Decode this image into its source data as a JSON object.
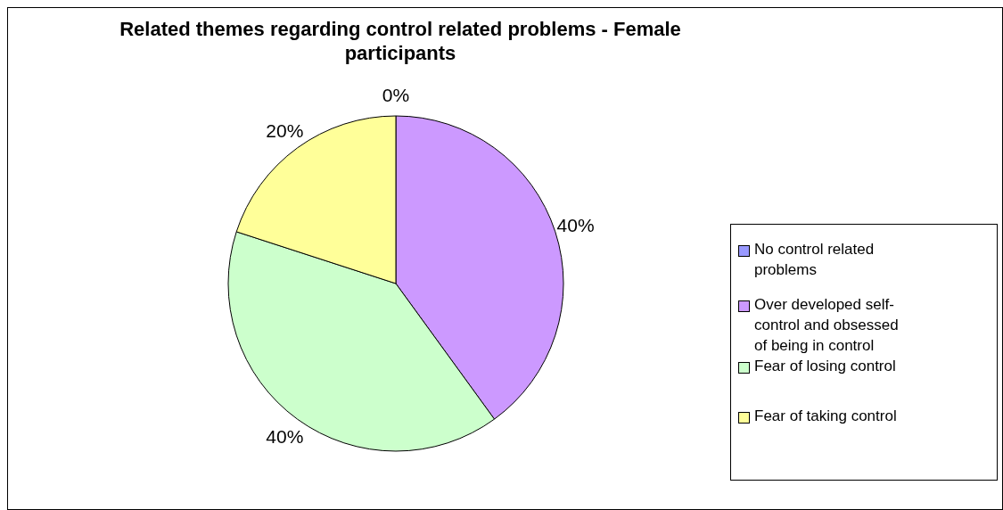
{
  "chart_data": {
    "type": "pie",
    "title": "Related themes regarding control related problems - Female participants",
    "categories": [
      "No control related problems",
      "Over developed self-control and obsessed of being in control",
      "Fear of losing control",
      "Fear of taking control"
    ],
    "values": [
      0,
      40,
      40,
      20
    ],
    "colors": [
      "#9999ff",
      "#cc99ff",
      "#ccffcc",
      "#ffff99"
    ],
    "value_labels": [
      "0%",
      "40%",
      "40%",
      "20%"
    ],
    "legend": "right"
  }
}
